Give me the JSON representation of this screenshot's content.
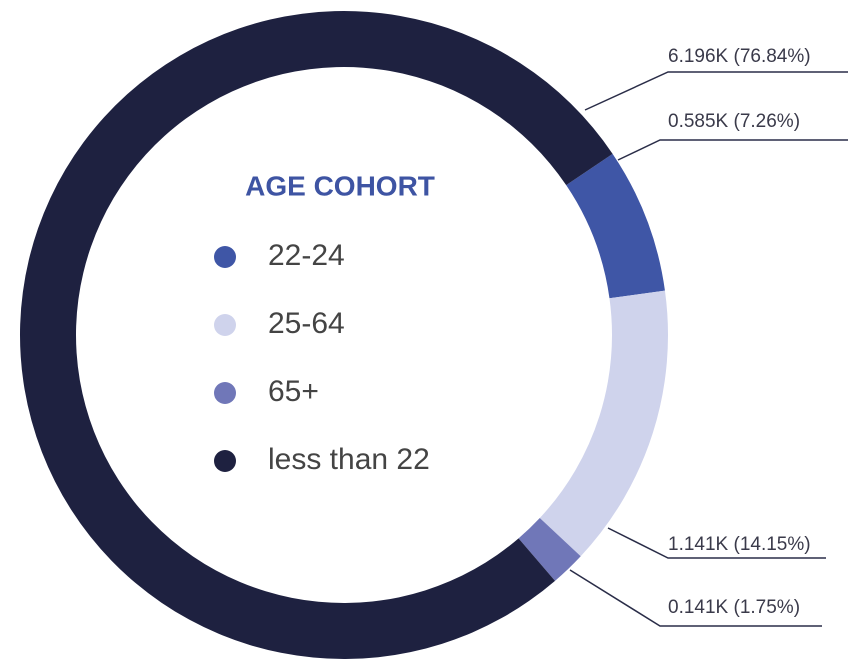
{
  "chart_data": {
    "type": "pie",
    "donut": true,
    "legend_title": "AGE COHORT",
    "categories": [
      "22-24",
      "25-64",
      "65+",
      "less than 22"
    ],
    "values": [
      0.585,
      1.141,
      0.141,
      6.196
    ],
    "value_labels": [
      "0.585K (7.26%)",
      "1.141K (14.15%)",
      "0.141K (1.75%)",
      "6.196K (76.84%)"
    ],
    "colors": [
      "#3f56a6",
      "#cfd3ec",
      "#7077b8",
      "#1e2140"
    ]
  }
}
